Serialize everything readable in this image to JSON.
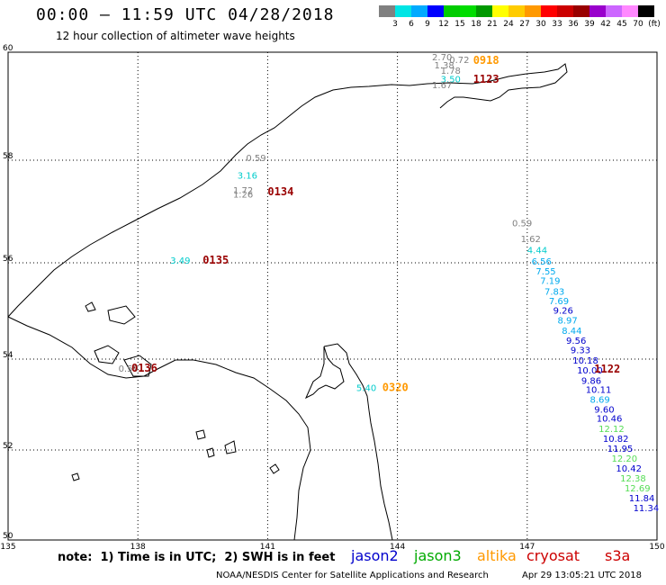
{
  "header": {
    "title": "00:00 – 11:59 UTC 04/28/2018",
    "subtitle": "12 hour collection of altimeter wave heights"
  },
  "scale": {
    "colors": [
      "#808080",
      "#00e5e5",
      "#00aaff",
      "#0000ff",
      "#00cc00",
      "#00dd00",
      "#009900",
      "#ffff00",
      "#ffcc00",
      "#ff9900",
      "#ff0000",
      "#cc0000",
      "#990000",
      "#9900cc",
      "#cc66ff",
      "#ff88ff",
      "#000000"
    ],
    "labels": [
      "3",
      "6",
      "9",
      "12",
      "15",
      "18",
      "21",
      "24",
      "27",
      "30",
      "33",
      "36",
      "39",
      "42",
      "45",
      "70",
      "(ft)"
    ]
  },
  "axes": {
    "lon_ticks": [
      "135",
      "138",
      "141",
      "144",
      "147",
      "150"
    ],
    "lat_ticks": [
      "60",
      "58",
      "56",
      "54",
      "52",
      "50"
    ]
  },
  "footer": {
    "note": "note:  1) Time is in UTC;  2) SWH is in feet",
    "legend": [
      {
        "name": "jason2",
        "color": "#0000cc"
      },
      {
        "name": "jason3",
        "color": "#00aa00"
      },
      {
        "name": "altika",
        "color": "#ff9900"
      },
      {
        "name": "cryosat",
        "color": "#cc0000"
      },
      {
        "name": "s3a",
        "color": "#cc0000"
      }
    ],
    "credit": "NOAA/NESDIS Center for Satellite Applications and Research",
    "timestamp": "Apr 29 13:05:21 UTC 2018"
  },
  "map_data": {
    "pass_labels": [
      {
        "text": "0918",
        "color": "#ff9900",
        "lon": 145.75,
        "lat": 59.78
      },
      {
        "text": "1123",
        "color": "#990000",
        "lon": 145.75,
        "lat": 59.43
      },
      {
        "text": "0134",
        "color": "#990000",
        "lon": 141.0,
        "lat": 57.32
      },
      {
        "text": "0135",
        "color": "#990000",
        "lon": 139.5,
        "lat": 55.98
      },
      {
        "text": "0136",
        "color": "#990000",
        "lon": 137.85,
        "lat": 53.72
      },
      {
        "text": "0320",
        "color": "#ff9900",
        "lon": 143.65,
        "lat": 53.3
      },
      {
        "text": "1122",
        "color": "#990000",
        "lon": 148.55,
        "lat": 53.7
      }
    ],
    "readings": [
      {
        "v": "2.70",
        "c": "#808080",
        "lon": 144.8,
        "lat": 59.85
      },
      {
        "v": "0.72",
        "c": "#808080",
        "lon": 145.2,
        "lat": 59.8
      },
      {
        "v": "1.38",
        "c": "#808080",
        "lon": 144.85,
        "lat": 59.7
      },
      {
        "v": "1.78",
        "c": "#808080",
        "lon": 145.0,
        "lat": 59.6
      },
      {
        "v": "3.50",
        "c": "#00cccc",
        "lon": 145.0,
        "lat": 59.44
      },
      {
        "v": "1.67",
        "c": "#808080",
        "lon": 144.8,
        "lat": 59.33
      },
      {
        "v": "0.59",
        "c": "#808080",
        "lon": 140.5,
        "lat": 57.98
      },
      {
        "v": "3.16",
        "c": "#00cccc",
        "lon": 140.3,
        "lat": 57.64
      },
      {
        "v": "1.72",
        "c": "#808080",
        "lon": 140.2,
        "lat": 57.35
      },
      {
        "v": "1.26",
        "c": "#808080",
        "lon": 140.2,
        "lat": 57.27
      },
      {
        "v": "3.49",
        "c": "#00cccc",
        "lon": 138.75,
        "lat": 55.98
      },
      {
        "v": "0.59",
        "c": "#808080",
        "lon": 137.55,
        "lat": 53.72
      },
      {
        "v": "5.40",
        "c": "#00cccc",
        "lon": 143.05,
        "lat": 53.3
      },
      {
        "v": "0.59",
        "c": "#808080",
        "lon": 146.65,
        "lat": 56.71
      },
      {
        "v": "1.62",
        "c": "#808080",
        "lon": 146.85,
        "lat": 56.4
      },
      {
        "v": "4.44",
        "c": "#00cccc",
        "lon": 147.0,
        "lat": 56.18
      },
      {
        "v": "6.56",
        "c": "#00aaee",
        "lon": 147.1,
        "lat": 55.96
      },
      {
        "v": "7.55",
        "c": "#00aaee",
        "lon": 147.2,
        "lat": 55.76
      },
      {
        "v": "7.19",
        "c": "#00aaee",
        "lon": 147.3,
        "lat": 55.56
      },
      {
        "v": "7.83",
        "c": "#00aaee",
        "lon": 147.4,
        "lat": 55.34
      },
      {
        "v": "7.69",
        "c": "#00aaee",
        "lon": 147.5,
        "lat": 55.14
      },
      {
        "v": "9.26",
        "c": "#0000cc",
        "lon": 147.6,
        "lat": 54.94
      },
      {
        "v": "8.97",
        "c": "#00aaee",
        "lon": 147.7,
        "lat": 54.74
      },
      {
        "v": "8.44",
        "c": "#00aaee",
        "lon": 147.8,
        "lat": 54.52
      },
      {
        "v": "9.56",
        "c": "#0000cc",
        "lon": 147.9,
        "lat": 54.32
      },
      {
        "v": "9.33",
        "c": "#0000cc",
        "lon": 148.0,
        "lat": 54.12
      },
      {
        "v": "10.18",
        "c": "#0000cc",
        "lon": 148.05,
        "lat": 53.9
      },
      {
        "v": "10.00",
        "c": "#0000cc",
        "lon": 148.15,
        "lat": 53.68
      },
      {
        "v": "9.86",
        "c": "#0000cc",
        "lon": 148.25,
        "lat": 53.46
      },
      {
        "v": "10.11",
        "c": "#0000cc",
        "lon": 148.35,
        "lat": 53.26
      },
      {
        "v": "8.69",
        "c": "#00aaee",
        "lon": 148.45,
        "lat": 53.04
      },
      {
        "v": "9.60",
        "c": "#0000cc",
        "lon": 148.55,
        "lat": 52.82
      },
      {
        "v": "10.46",
        "c": "#0000cc",
        "lon": 148.6,
        "lat": 52.62
      },
      {
        "v": "12.12",
        "c": "#55dd55",
        "lon": 148.65,
        "lat": 52.4
      },
      {
        "v": "10.82",
        "c": "#0000cc",
        "lon": 148.75,
        "lat": 52.18
      },
      {
        "v": "11.95",
        "c": "#0000cc",
        "lon": 148.85,
        "lat": 51.96
      },
      {
        "v": "12.20",
        "c": "#55dd55",
        "lon": 148.95,
        "lat": 51.74
      },
      {
        "v": "10.42",
        "c": "#0000cc",
        "lon": 149.05,
        "lat": 51.52
      },
      {
        "v": "12.38",
        "c": "#55dd55",
        "lon": 149.15,
        "lat": 51.3
      },
      {
        "v": "12.69",
        "c": "#55dd55",
        "lon": 149.25,
        "lat": 51.08
      },
      {
        "v": "11.84",
        "c": "#0000cc",
        "lon": 149.35,
        "lat": 50.86
      },
      {
        "v": "11.34",
        "c": "#0000cc",
        "lon": 149.45,
        "lat": 50.64
      }
    ]
  }
}
